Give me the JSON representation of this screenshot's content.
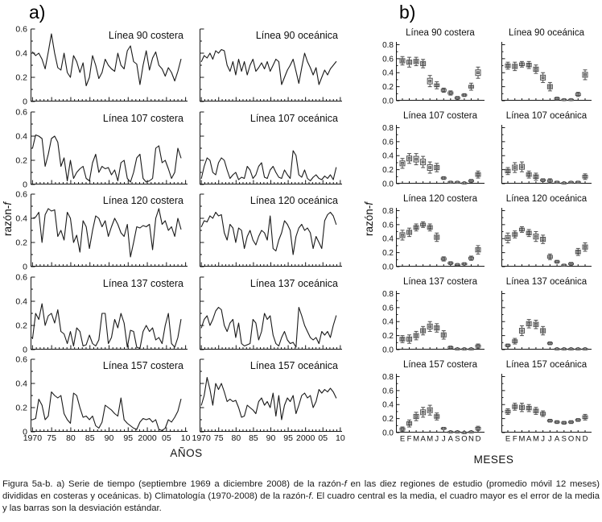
{
  "figure": {
    "panel_a_label": "a)",
    "panel_b_label": "b)",
    "caption": "Figura 5a-b. a) Serie de tiempo (septiembre 1969 a diciembre 2008) de la razón-f en las diez regiones de estudio (promedio móvil 12 meses) divididas en costeras y oceánicas. b) Climatología (1970-2008) de la razón-f. El cuadro central es la media, el cuadro mayor es el error de la media y las barras son la desviación estándar."
  },
  "chart_data": {
    "panel_a": {
      "type": "line",
      "xlabel": "AÑOS",
      "ylabel": "razón-f",
      "xlim": [
        1969.5,
        2010.5
      ],
      "ylim": [
        0,
        0.6
      ],
      "x_tick_years": [
        1970,
        1975,
        1980,
        1985,
        1990,
        1995,
        2000,
        2005,
        2010
      ],
      "x_ticks": [
        "1970",
        "75",
        "80",
        "85",
        "90",
        "95",
        "2000",
        "05",
        "10"
      ],
      "x_minor_step": 1,
      "y_ticks": [
        0,
        0.2,
        0.4,
        0.6
      ],
      "y_tick_labels": [
        "0",
        "0.2",
        "0.4",
        "0.6"
      ],
      "y_minor_step": 0.1,
      "x_start": 1970,
      "x_end": 2008.8,
      "series": [
        {
          "title": "Línea 90 costera",
          "values": [
            0.41,
            0.38,
            0.4,
            0.35,
            0.27,
            0.41,
            0.56,
            0.4,
            0.28,
            0.26,
            0.4,
            0.24,
            0.2,
            0.38,
            0.33,
            0.24,
            0.32,
            0.13,
            0.2,
            0.38,
            0.3,
            0.19,
            0.24,
            0.35,
            0.3,
            0.27,
            0.25,
            0.4,
            0.3,
            0.27,
            0.42,
            0.46,
            0.33,
            0.31,
            0.14,
            0.3,
            0.42,
            0.26,
            0.36,
            0.41,
            0.3,
            0.27,
            0.21,
            0.28,
            0.24,
            0.17,
            0.25,
            0.35
          ]
        },
        {
          "title": "Línea 90 oceánica",
          "values": [
            0.33,
            0.38,
            0.36,
            0.4,
            0.35,
            0.42,
            0.4,
            0.43,
            0.42,
            0.3,
            0.25,
            0.33,
            0.22,
            0.35,
            0.25,
            0.33,
            0.22,
            0.3,
            0.35,
            0.25,
            0.28,
            0.32,
            0.27,
            0.33,
            0.25,
            0.3,
            0.35,
            0.33,
            0.14,
            0.2,
            0.26,
            0.3,
            0.35,
            0.25,
            0.15,
            0.28,
            0.4,
            0.33,
            0.28,
            0.22,
            0.28,
            0.14,
            0.2,
            0.26,
            0.22,
            0.27,
            0.3,
            0.33
          ]
        },
        {
          "title": "Línea 107 costera",
          "values": [
            0.3,
            0.41,
            0.4,
            0.38,
            0.15,
            0.25,
            0.38,
            0.4,
            0.35,
            0.15,
            0.22,
            0.03,
            0.2,
            0.05,
            0.1,
            0.13,
            0.15,
            0.05,
            0.03,
            0.18,
            0.25,
            0.1,
            0.15,
            0.13,
            0.14,
            0.08,
            0.12,
            0.03,
            0.18,
            0.2,
            0.05,
            0.02,
            0.1,
            0.22,
            0.25,
            0.05,
            0.02,
            0.03,
            0.05,
            0.3,
            0.32,
            0.18,
            0.2,
            0.13,
            0.05,
            0.1,
            0.3,
            0.22
          ]
        },
        {
          "title": "Línea 107 oceánica",
          "values": [
            0.05,
            0.15,
            0.22,
            0.2,
            0.1,
            0.08,
            0.18,
            0.22,
            0.2,
            0.12,
            0.05,
            0.08,
            0.1,
            0.04,
            0.06,
            0.05,
            0.15,
            0.12,
            0.05,
            0.08,
            0.15,
            0.18,
            0.06,
            0.05,
            0.12,
            0.15,
            0.1,
            0.06,
            0.05,
            0.12,
            0.08,
            0.05,
            0.28,
            0.24,
            0.08,
            0.06,
            0.12,
            0.05,
            0.03,
            0.06,
            0.08,
            0.05,
            0.04,
            0.07,
            0.05,
            0.08,
            0.04,
            0.14
          ]
        },
        {
          "title": "Línea 120 costera",
          "values": [
            0.4,
            0.41,
            0.45,
            0.2,
            0.43,
            0.48,
            0.46,
            0.47,
            0.25,
            0.3,
            0.22,
            0.45,
            0.4,
            0.2,
            0.26,
            0.12,
            0.38,
            0.33,
            0.15,
            0.3,
            0.42,
            0.4,
            0.33,
            0.38,
            0.25,
            0.33,
            0.4,
            0.35,
            0.28,
            0.25,
            0.35,
            0.08,
            0.2,
            0.33,
            0.32,
            0.34,
            0.33,
            0.35,
            0.14,
            0.4,
            0.48,
            0.35,
            0.38,
            0.3,
            0.33,
            0.25,
            0.4,
            0.31
          ]
        },
        {
          "title": "Línea 120 oceánica",
          "values": [
            0.33,
            0.38,
            0.37,
            0.42,
            0.4,
            0.45,
            0.42,
            0.43,
            0.28,
            0.22,
            0.35,
            0.32,
            0.2,
            0.32,
            0.3,
            0.15,
            0.25,
            0.3,
            0.22,
            0.18,
            0.25,
            0.3,
            0.28,
            0.22,
            0.42,
            0.15,
            0.13,
            0.22,
            0.28,
            0.38,
            0.35,
            0.3,
            0.1,
            0.25,
            0.32,
            0.35,
            0.3,
            0.32,
            0.28,
            0.15,
            0.25,
            0.2,
            0.15,
            0.38,
            0.43,
            0.45,
            0.42,
            0.35
          ]
        },
        {
          "title": "Línea 137 costera",
          "values": [
            0.09,
            0.3,
            0.25,
            0.38,
            0.2,
            0.28,
            0.3,
            0.22,
            0.33,
            0.15,
            0.13,
            0.05,
            0.15,
            0.03,
            0.18,
            0.15,
            0.03,
            0.04,
            0.12,
            0.05,
            0.03,
            0.08,
            0.3,
            0.3,
            0.05,
            0.1,
            0.25,
            0.18,
            0.3,
            0.22,
            0.02,
            0.16,
            0.15,
            0.02,
            0.01,
            0.15,
            0.2,
            0.15,
            0.18,
            0.08,
            0.1,
            0.05,
            0.2,
            0.3,
            0.05,
            0.02,
            0.1,
            0.25
          ]
        },
        {
          "title": "Línea 137 oceánica",
          "values": [
            0.18,
            0.25,
            0.28,
            0.2,
            0.25,
            0.32,
            0.35,
            0.33,
            0.2,
            0.15,
            0.22,
            0.25,
            0.1,
            0.22,
            0.05,
            0.03,
            0.04,
            0.05,
            0.25,
            0.22,
            0.08,
            0.15,
            0.3,
            0.25,
            0.28,
            0.12,
            0.05,
            0.03,
            0.1,
            0.15,
            0.08,
            0.05,
            0.06,
            0.02,
            0.35,
            0.28,
            0.2,
            0.15,
            0.1,
            0.08,
            0.1,
            0.05,
            0.15,
            0.12,
            0.15,
            0.1,
            0.2,
            0.28
          ]
        },
        {
          "title": "Línea 157 costera",
          "values": [
            0.1,
            0.11,
            0.27,
            0.22,
            0.1,
            0.13,
            0.33,
            0.3,
            0.28,
            0.3,
            0.15,
            0.1,
            0.07,
            0.32,
            0.3,
            0.2,
            0.12,
            0.13,
            0.1,
            0.13,
            0.05,
            0.03,
            0.08,
            0.22,
            0.2,
            0.18,
            0.15,
            0.13,
            0.28,
            0.1,
            0.07,
            0.05,
            0.03,
            0.02,
            0.08,
            0.11,
            0.1,
            0.11,
            0.08,
            0.1,
            0.02,
            0.01,
            0.03,
            0.1,
            0.08,
            0.12,
            0.17,
            0.27
          ]
        },
        {
          "title": "Línea 157 oceánica",
          "values": [
            0.22,
            0.3,
            0.45,
            0.35,
            0.22,
            0.4,
            0.35,
            0.4,
            0.33,
            0.25,
            0.27,
            0.25,
            0.26,
            0.2,
            0.12,
            0.13,
            0.22,
            0.2,
            0.18,
            0.15,
            0.25,
            0.28,
            0.22,
            0.25,
            0.2,
            0.32,
            0.13,
            0.3,
            0.1,
            0.22,
            0.28,
            0.25,
            0.3,
            0.15,
            0.22,
            0.3,
            0.32,
            0.28,
            0.3,
            0.2,
            0.25,
            0.35,
            0.32,
            0.35,
            0.33,
            0.36,
            0.33,
            0.28
          ]
        }
      ]
    },
    "panel_b": {
      "type": "box",
      "xlabel": "MESES",
      "ylabel": "razón-f",
      "months": [
        "E",
        "F",
        "M",
        "A",
        "M",
        "J",
        "J",
        "A",
        "S",
        "O",
        "N",
        "D"
      ],
      "ylim": [
        0,
        0.84
      ],
      "y_ticks": [
        0,
        0.2,
        0.4,
        0.6,
        0.8
      ],
      "y_tick_labels": [
        "0.0",
        "0.2",
        "0.4",
        "0.6",
        "0.8"
      ],
      "y_minor_step": 0.1,
      "legend_note": "cuadro central = media, cuadro mayor = error de la media, barras = desviación estándar",
      "series": [
        {
          "title": "Línea 90 costera",
          "mean": [
            0.57,
            0.55,
            0.56,
            0.53,
            0.28,
            0.22,
            0.15,
            0.11,
            0.04,
            0.08,
            0.2,
            0.4
          ],
          "se": [
            0.03,
            0.03,
            0.03,
            0.03,
            0.04,
            0.02,
            0.015,
            0.015,
            0.01,
            0.01,
            0.02,
            0.04
          ],
          "sd": [
            0.06,
            0.07,
            0.06,
            0.06,
            0.08,
            0.05,
            0.03,
            0.03,
            0.02,
            0.02,
            0.05,
            0.08
          ]
        },
        {
          "title": "Línea 90 oceánica",
          "mean": [
            0.5,
            0.49,
            0.52,
            0.51,
            0.45,
            0.33,
            0.2,
            0.03,
            0.015,
            0.015,
            0.09,
            0.37
          ],
          "se": [
            0.025,
            0.03,
            0.02,
            0.025,
            0.03,
            0.035,
            0.03,
            0.01,
            0.005,
            0.005,
            0.015,
            0.035
          ],
          "sd": [
            0.05,
            0.06,
            0.04,
            0.05,
            0.06,
            0.07,
            0.06,
            0.02,
            0.01,
            0.01,
            0.03,
            0.07
          ]
        },
        {
          "title": "Línea 107 costera",
          "mean": [
            0.29,
            0.36,
            0.35,
            0.31,
            0.23,
            0.23,
            0.08,
            0.02,
            0.02,
            0.01,
            0.04,
            0.13
          ],
          "se": [
            0.035,
            0.035,
            0.04,
            0.04,
            0.04,
            0.03,
            0.01,
            0.007,
            0.005,
            0.005,
            0.01,
            0.025
          ],
          "sd": [
            0.07,
            0.07,
            0.08,
            0.08,
            0.08,
            0.06,
            0.02,
            0.015,
            0.01,
            0.01,
            0.02,
            0.05
          ]
        },
        {
          "title": "Línea 107 oceánica",
          "mean": [
            0.18,
            0.23,
            0.24,
            0.13,
            0.1,
            0.05,
            0.04,
            0.02,
            0.01,
            0.02,
            0.02,
            0.1
          ],
          "se": [
            0.025,
            0.035,
            0.035,
            0.025,
            0.025,
            0.01,
            0.015,
            0.007,
            0.005,
            0.005,
            0.007,
            0.02
          ],
          "sd": [
            0.05,
            0.07,
            0.07,
            0.05,
            0.05,
            0.02,
            0.03,
            0.015,
            0.01,
            0.01,
            0.015,
            0.04
          ]
        },
        {
          "title": "Línea 120 costera",
          "mean": [
            0.45,
            0.49,
            0.56,
            0.6,
            0.56,
            0.42,
            0.11,
            0.05,
            0.03,
            0.04,
            0.12,
            0.24
          ],
          "se": [
            0.035,
            0.03,
            0.025,
            0.02,
            0.025,
            0.03,
            0.015,
            0.01,
            0.005,
            0.007,
            0.015,
            0.03
          ],
          "sd": [
            0.07,
            0.06,
            0.05,
            0.04,
            0.05,
            0.06,
            0.03,
            0.02,
            0.01,
            0.015,
            0.03,
            0.06
          ]
        },
        {
          "title": "Línea 120 oceánica",
          "mean": [
            0.41,
            0.46,
            0.53,
            0.48,
            0.43,
            0.39,
            0.14,
            0.07,
            0.02,
            0.04,
            0.21,
            0.28
          ],
          "se": [
            0.035,
            0.025,
            0.02,
            0.025,
            0.035,
            0.03,
            0.02,
            0.01,
            0.007,
            0.01,
            0.025,
            0.03
          ],
          "sd": [
            0.07,
            0.05,
            0.04,
            0.05,
            0.07,
            0.06,
            0.04,
            0.02,
            0.015,
            0.02,
            0.05,
            0.06
          ]
        },
        {
          "title": "Línea 137 costera",
          "mean": [
            0.15,
            0.15,
            0.2,
            0.27,
            0.33,
            0.31,
            0.21,
            0.03,
            0.01,
            0.01,
            0.01,
            0.05
          ],
          "se": [
            0.025,
            0.03,
            0.03,
            0.03,
            0.035,
            0.03,
            0.03,
            0.01,
            0.005,
            0.005,
            0.005,
            0.015
          ],
          "sd": [
            0.05,
            0.06,
            0.06,
            0.06,
            0.07,
            0.06,
            0.06,
            0.02,
            0.01,
            0.01,
            0.01,
            0.03
          ]
        },
        {
          "title": "Línea 137 oceánica",
          "mean": [
            0.06,
            0.12,
            0.27,
            0.37,
            0.36,
            0.27,
            0.09,
            0.01,
            0.01,
            0.01,
            0.01,
            0.01
          ],
          "se": [
            0.01,
            0.02,
            0.035,
            0.03,
            0.03,
            0.03,
            0.01,
            0.005,
            0.005,
            0.005,
            0.005,
            0.005
          ],
          "sd": [
            0.02,
            0.04,
            0.07,
            0.06,
            0.06,
            0.06,
            0.02,
            0.01,
            0.01,
            0.01,
            0.01,
            0.01
          ]
        },
        {
          "title": "Línea 157 costera",
          "mean": [
            0.05,
            0.13,
            0.23,
            0.29,
            0.32,
            0.23,
            0.06,
            0.01,
            0.01,
            0.0,
            0.01,
            0.06
          ],
          "se": [
            0.015,
            0.025,
            0.03,
            0.035,
            0.035,
            0.025,
            0.007,
            0.005,
            0.005,
            0.005,
            0.005,
            0.015
          ],
          "sd": [
            0.03,
            0.05,
            0.06,
            0.07,
            0.07,
            0.05,
            0.015,
            0.01,
            0.01,
            0.01,
            0.01,
            0.03
          ]
        },
        {
          "title": "Línea 157 oceánica",
          "mean": [
            0.3,
            0.37,
            0.36,
            0.35,
            0.31,
            0.27,
            0.17,
            0.15,
            0.14,
            0.15,
            0.18,
            0.22
          ],
          "se": [
            0.02,
            0.025,
            0.03,
            0.025,
            0.025,
            0.02,
            0.01,
            0.01,
            0.01,
            0.01,
            0.01,
            0.02
          ],
          "sd": [
            0.04,
            0.05,
            0.06,
            0.05,
            0.05,
            0.04,
            0.02,
            0.02,
            0.02,
            0.02,
            0.02,
            0.04
          ]
        }
      ]
    }
  }
}
